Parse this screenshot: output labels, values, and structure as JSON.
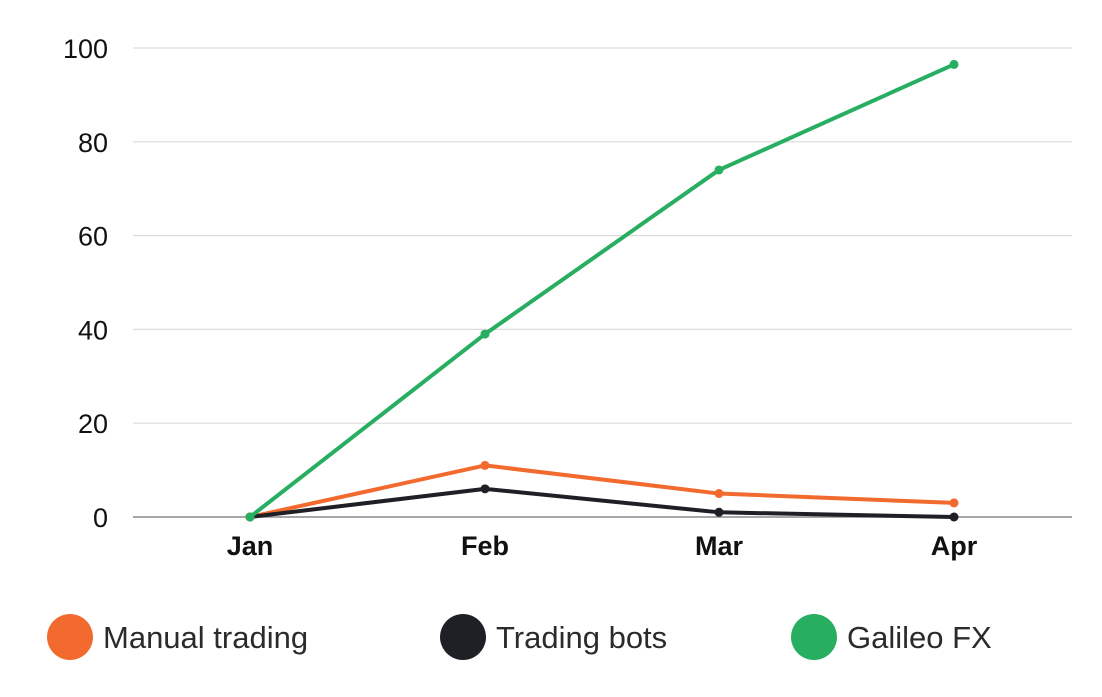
{
  "chart_data": {
    "type": "line",
    "title": "",
    "xlabel": "",
    "ylabel": "",
    "categories": [
      "Jan",
      "Feb",
      "Mar",
      "Apr"
    ],
    "ylim": [
      0,
      100
    ],
    "yticks": [
      0,
      20,
      40,
      60,
      80,
      100
    ],
    "grid": true,
    "legend_position": "bottom",
    "series": [
      {
        "name": "Manual trading",
        "color": "#f26a2e",
        "values": [
          0,
          11,
          5,
          3
        ]
      },
      {
        "name": "Trading bots",
        "color": "#1f2026",
        "values": [
          0,
          6,
          1,
          0
        ]
      },
      {
        "name": "Galileo FX",
        "color": "#27ae60",
        "values": [
          0,
          39,
          74,
          96.5
        ]
      }
    ]
  }
}
